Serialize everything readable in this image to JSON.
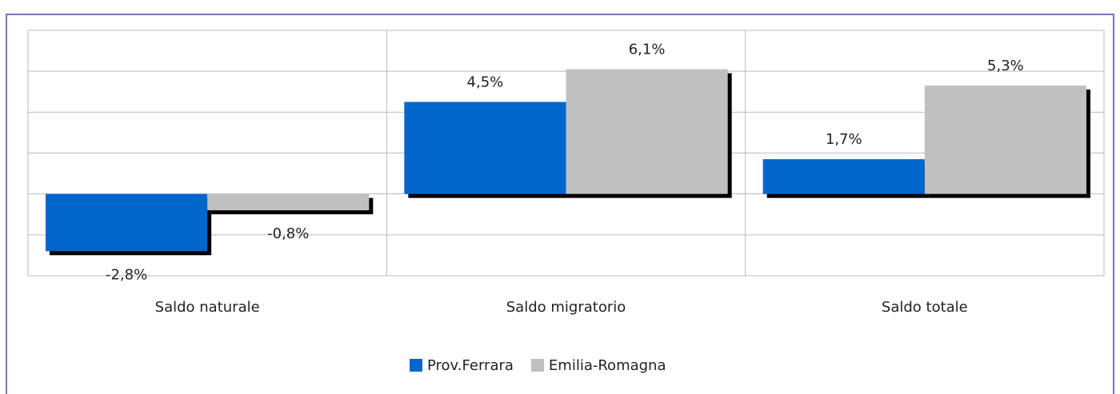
{
  "chart_data": {
    "type": "bar",
    "categories": [
      "Saldo naturale",
      "Saldo migratorio",
      "Saldo totale"
    ],
    "series": [
      {
        "name": "Prov.Ferrara",
        "color": "#0066cc",
        "values": [
          -2.8,
          4.5,
          1.7
        ],
        "value_labels": [
          "-2,8%",
          "4,5%",
          "1,7%"
        ]
      },
      {
        "name": "Emilia-Romagna",
        "color": "#c0c0c0",
        "values": [
          -0.8,
          6.1,
          5.3
        ],
        "value_labels": [
          "-0,8%",
          "6,1%",
          "5,3%"
        ]
      }
    ],
    "ylim": [
      -4,
      8
    ],
    "yticks": [
      -4,
      -2,
      0,
      2,
      4,
      6,
      8
    ],
    "grid": true,
    "legend": "bottom"
  }
}
